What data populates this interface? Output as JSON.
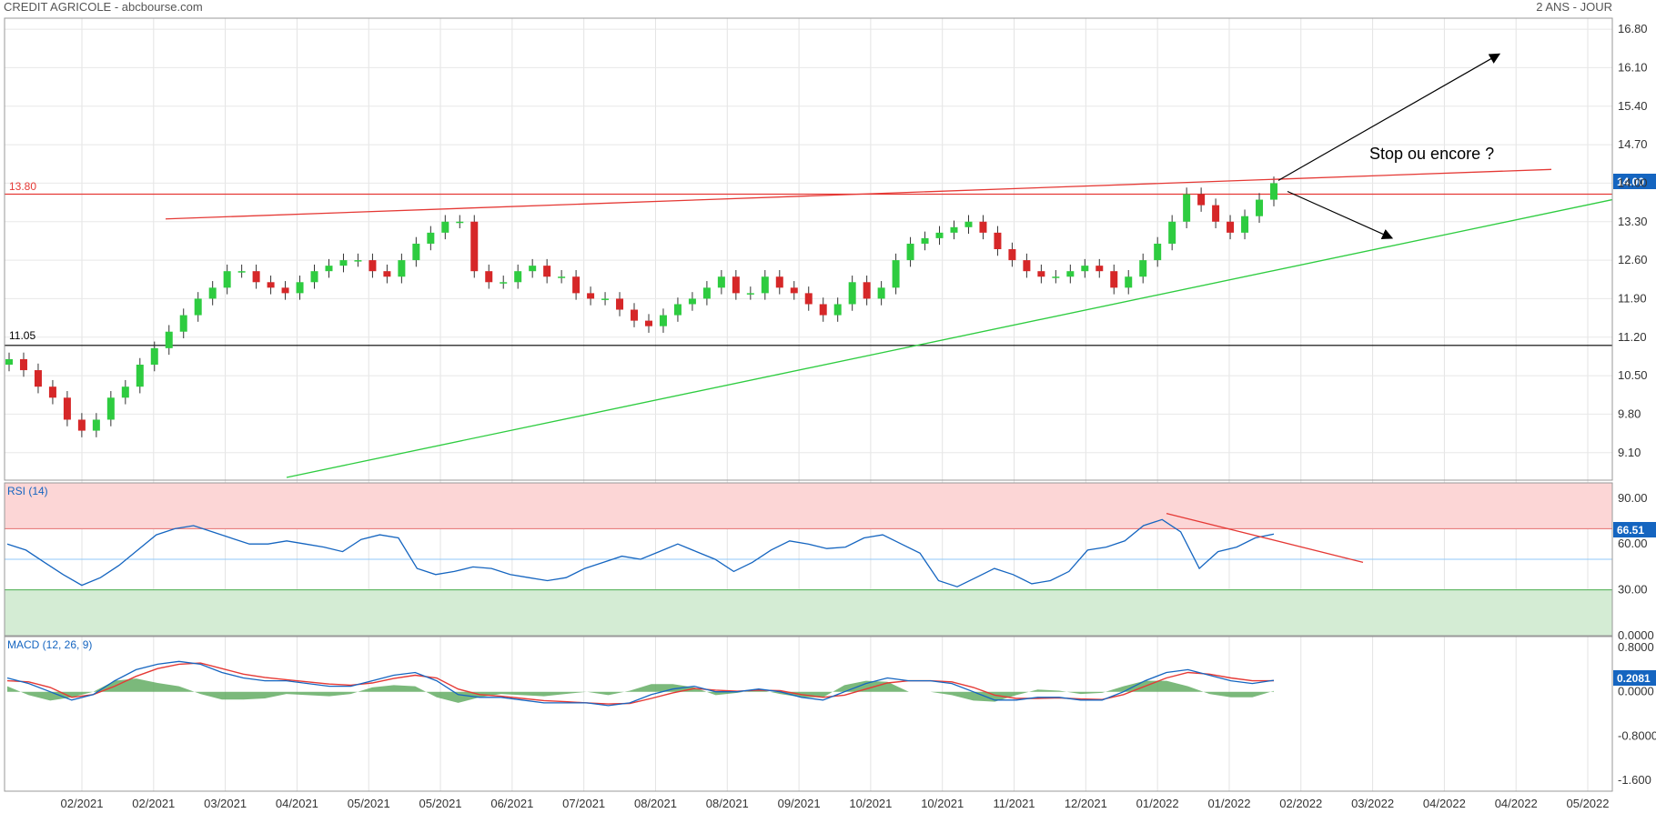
{
  "header": {
    "title": "CREDIT AGRICOLE - abcbourse.com",
    "period": "2 ANS - JOUR"
  },
  "chart_data": [
    {
      "type": "candlestick",
      "name": "price",
      "ylim": [
        8.6,
        17.0
      ],
      "y_ticks": [
        "16.80",
        "16.10",
        "15.40",
        "14.70",
        "14.00",
        "13.30",
        "12.60",
        "11.90",
        "11.20",
        "10.50",
        "9.80",
        "9.10"
      ],
      "last_value": "14.00",
      "last_color": "#1565c0",
      "levels": [
        {
          "label": "13.80",
          "value": 13.8,
          "color": "#e53935"
        },
        {
          "label": "11.05",
          "value": 11.05,
          "color": "#000000"
        }
      ],
      "annotation": "Stop ou encore ?",
      "closes": [
        10.8,
        10.6,
        10.3,
        10.1,
        9.7,
        9.5,
        9.7,
        10.1,
        10.3,
        10.7,
        11.0,
        11.3,
        11.6,
        11.9,
        12.1,
        12.4,
        12.4,
        12.2,
        12.1,
        12.0,
        12.2,
        12.4,
        12.5,
        12.6,
        12.6,
        12.4,
        12.3,
        12.6,
        12.9,
        13.1,
        13.3,
        13.3,
        12.4,
        12.2,
        12.2,
        12.4,
        12.5,
        12.3,
        12.3,
        12.0,
        11.9,
        11.9,
        11.7,
        11.5,
        11.4,
        11.6,
        11.8,
        11.9,
        12.1,
        12.3,
        12.0,
        12.0,
        12.3,
        12.1,
        12.0,
        11.8,
        11.6,
        11.8,
        12.2,
        11.9,
        12.1,
        12.6,
        12.9,
        13.0,
        13.1,
        13.2,
        13.3,
        13.1,
        12.8,
        12.6,
        12.4,
        12.3,
        12.3,
        12.4,
        12.5,
        12.4,
        12.1,
        12.3,
        12.6,
        12.9,
        13.3,
        13.8,
        13.6,
        13.3,
        13.1,
        13.4,
        13.7,
        14.0
      ],
      "colors": {
        "up": "#2ecc40",
        "down": "#d62728",
        "wick": "#333333"
      }
    },
    {
      "type": "line",
      "name": "RSI (14)",
      "ylim": [
        0,
        100
      ],
      "y_ticks": [
        "90.00",
        "60.00",
        "30.00",
        "0.0000"
      ],
      "overbought": 70,
      "oversold": 30,
      "mid": 50,
      "last_value": "66.51",
      "color": "#1565c0",
      "values": [
        60,
        56,
        48,
        40,
        33,
        38,
        46,
        56,
        66,
        70,
        72,
        68,
        64,
        60,
        60,
        62,
        60,
        58,
        55,
        63,
        66,
        64,
        44,
        40,
        42,
        45,
        44,
        40,
        38,
        36,
        38,
        44,
        48,
        52,
        50,
        55,
        60,
        55,
        50,
        42,
        48,
        56,
        62,
        60,
        57,
        58,
        64,
        66,
        60,
        54,
        36,
        32,
        38,
        44,
        40,
        34,
        36,
        42,
        56,
        58,
        62,
        72,
        76,
        68,
        44,
        55,
        58,
        64,
        66.51
      ]
    },
    {
      "type": "line",
      "name": "MACD (12, 26, 9)",
      "ylim": [
        -1.8,
        1.0
      ],
      "y_ticks": [
        "0.8000",
        "0.0000",
        "-0.8000",
        "-1.600"
      ],
      "last_value": "0.2081",
      "series": [
        {
          "name": "MACD",
          "color": "#1565c0"
        },
        {
          "name": "Signal",
          "color": "#e53935"
        }
      ],
      "macd": [
        0.25,
        0.15,
        0.0,
        -0.15,
        -0.05,
        0.2,
        0.4,
        0.5,
        0.55,
        0.5,
        0.35,
        0.25,
        0.2,
        0.2,
        0.15,
        0.1,
        0.1,
        0.2,
        0.3,
        0.35,
        0.2,
        -0.05,
        -0.1,
        -0.1,
        -0.15,
        -0.2,
        -0.2,
        -0.2,
        -0.25,
        -0.2,
        -0.05,
        0.05,
        0.1,
        0.0,
        0.0,
        0.05,
        0.0,
        -0.1,
        -0.15,
        0.0,
        0.15,
        0.25,
        0.2,
        0.2,
        0.15,
        0.0,
        -0.15,
        -0.15,
        -0.1,
        -0.1,
        -0.15,
        -0.15,
        0.0,
        0.2,
        0.35,
        0.4,
        0.3,
        0.2,
        0.15,
        0.2081
      ],
      "signal": [
        0.2,
        0.18,
        0.08,
        -0.1,
        -0.05,
        0.1,
        0.28,
        0.42,
        0.5,
        0.52,
        0.42,
        0.32,
        0.26,
        0.22,
        0.18,
        0.14,
        0.12,
        0.16,
        0.24,
        0.3,
        0.25,
        0.05,
        -0.05,
        -0.08,
        -0.12,
        -0.16,
        -0.18,
        -0.2,
        -0.22,
        -0.21,
        -0.12,
        -0.02,
        0.06,
        0.03,
        0.01,
        0.03,
        0.02,
        -0.05,
        -0.1,
        -0.06,
        0.05,
        0.16,
        0.2,
        0.2,
        0.18,
        0.08,
        -0.06,
        -0.12,
        -0.12,
        -0.11,
        -0.13,
        -0.14,
        -0.05,
        0.1,
        0.25,
        0.35,
        0.32,
        0.25,
        0.2,
        0.2
      ]
    }
  ],
  "x_ticks": [
    "02/2021",
    "02/2021",
    "03/2021",
    "04/2021",
    "05/2021",
    "05/2021",
    "06/2021",
    "07/2021",
    "08/2021",
    "08/2021",
    "09/2021",
    "10/2021",
    "10/2021",
    "11/2021",
    "12/2021",
    "01/2022",
    "01/2022",
    "02/2022",
    "03/2022",
    "04/2022",
    "04/2022",
    "05/2022"
  ]
}
